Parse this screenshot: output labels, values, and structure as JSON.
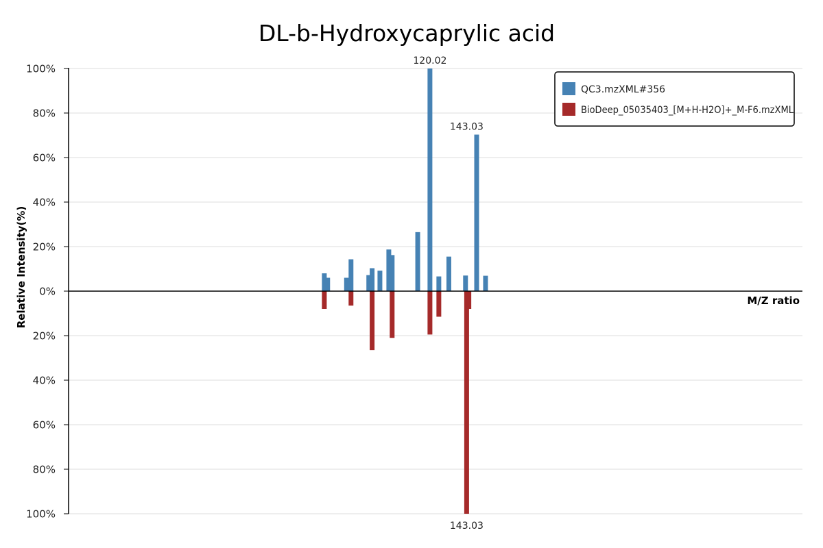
{
  "chart_data": {
    "type": "bar",
    "title": "DL-b-Hydroxycaprylic acid",
    "xlabel": "M/Z ratio",
    "ylabel": "Relative Intensity(%)",
    "ylim": [
      -100,
      100
    ],
    "xlim": [
      0,
      330
    ],
    "y_ticks": [
      {
        "value": 100,
        "label": "100%"
      },
      {
        "value": 80,
        "label": "80%"
      },
      {
        "value": 60,
        "label": "60%"
      },
      {
        "value": 40,
        "label": "40%"
      },
      {
        "value": 20,
        "label": "20%"
      },
      {
        "value": 0,
        "label": "0%"
      },
      {
        "value": -20,
        "label": "20%"
      },
      {
        "value": -40,
        "label": "40%"
      },
      {
        "value": -60,
        "label": "60%"
      },
      {
        "value": -80,
        "label": "80%"
      },
      {
        "value": -100,
        "label": "100%"
      }
    ],
    "grid": true,
    "legend_position": "top-right",
    "series": [
      {
        "name": "QC3.mzXML#356",
        "color": "#4682b4",
        "direction": "up",
        "x": [
          115.0,
          116.5,
          125.0,
          127.0,
          135.0,
          136.5,
          140.0,
          144.0,
          145.5,
          157.0,
          162.5,
          166.5,
          171.0,
          178.5,
          183.5,
          187.5
        ],
        "y": [
          8,
          6,
          6,
          14.3,
          7.2,
          10.3,
          9.2,
          18.7,
          16.2,
          26.5,
          100,
          6.6,
          15.5,
          7.0,
          70.3,
          6.9
        ]
      },
      {
        "name": "BioDeep_05035403_[M+H-H2O]+_M-F6.mzXML",
        "color": "#a52a2a",
        "direction": "down",
        "x": [
          115.0,
          127.0,
          136.5,
          145.5,
          162.5,
          166.5,
          179.0,
          180.0
        ],
        "y": [
          8,
          6.5,
          26.5,
          21,
          19.5,
          11.5,
          100,
          8
        ]
      }
    ],
    "annotations": [
      {
        "text": "120.02",
        "x": 162.5,
        "y": 100,
        "side": "top"
      },
      {
        "text": "143.03",
        "x": 179.0,
        "y": 70.3,
        "side": "top"
      },
      {
        "text": "143.03",
        "x": 179.0,
        "y": -100,
        "side": "bottom"
      }
    ]
  }
}
